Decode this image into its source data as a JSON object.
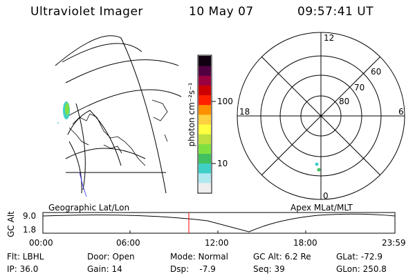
{
  "header": {
    "instrument": "Ultraviolet Imager",
    "date": "10 May 07",
    "time": "09:57:41 UT"
  },
  "left_map": {
    "caption": "Geographic Lat/Lon"
  },
  "right_map": {
    "caption": "Apex MLat/MLT",
    "mlt_labels": {
      "top": "12",
      "left": "18",
      "right": "6",
      "bottom": "0"
    },
    "lat_rings": [
      "60",
      "70",
      "80"
    ]
  },
  "colorbar": {
    "unit_label": "photon cm⁻²s⁻¹",
    "ticks": [
      "100",
      "10"
    ],
    "scale": "log",
    "colors": [
      "#eeeeee",
      "#b0e8f0",
      "#40d0c8",
      "#40c060",
      "#80e040",
      "#c0e040",
      "#ffff40",
      "#ffd040",
      "#ff9000",
      "#ff2000",
      "#cc0000",
      "#990040",
      "#500040",
      "#100010"
    ]
  },
  "altitude_panel": {
    "ylabel": "GC Alt",
    "y_ticks": [
      "9.0",
      "1.8"
    ],
    "x_ticks": [
      "00:00",
      "06:00",
      "12:00",
      "18:00",
      "23:59"
    ],
    "current_time": "09:57:41",
    "marker_color": "#ff0000"
  },
  "info": {
    "row1": [
      "Flt: LBHL",
      "Door: Open",
      "Mode: Normal",
      "GC Alt: 6.2 Re",
      "GLat: -72.9"
    ],
    "row2": [
      "IP: 36.0",
      "Gain: 14",
      "Dsp:    -7.9",
      "Seq: 39",
      "GLon: 250.8"
    ]
  }
}
